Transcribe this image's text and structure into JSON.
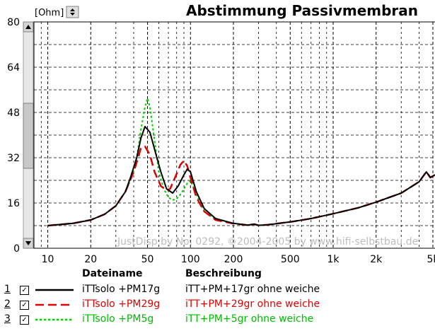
{
  "title": "Abstimmung Passivmembran",
  "unit_label": "[Ohm]",
  "watermark": "JustDisp by No. 0292, ©2004-2005 by www.hifi-selbstbau.de",
  "legend": {
    "header_file": "Dateiname",
    "header_desc": "Beschreibung",
    "entries": [
      {
        "index": "1",
        "checked": "☑",
        "file": "iTTsolo +PM17g",
        "desc": "iTT+PM+17gr ohne weiche",
        "color": "#000000",
        "style": "solid"
      },
      {
        "index": "2",
        "checked": "☑",
        "file": "iTTsolo +PM29g",
        "desc": "iTT+PM+29gr ohne weiche",
        "color": "#dd0000",
        "style": "dashed"
      },
      {
        "index": "3",
        "checked": "☑",
        "file": "iTTsolo +PM5g",
        "desc": "iTT+PM+5gr ohne weiche",
        "color": "#00cc00",
        "style": "dotted"
      }
    ]
  },
  "icons": {
    "spin": "spin-arrows-icon",
    "scroll_up": "arrow-up-icon",
    "scroll_down": "arrow-down-icon"
  },
  "chart_data": {
    "type": "line",
    "title": "Abstimmung Passivmembran",
    "ylabel": "[Ohm]",
    "xscale": "log",
    "xlim": [
      8,
      6000
    ],
    "ylim": [
      0,
      80
    ],
    "y_ticks": [
      "80",
      "64",
      "48",
      "32",
      "16",
      "0"
    ],
    "x_ticks": [
      "10",
      "20",
      "50",
      "100",
      "200",
      "500",
      "1k",
      "2k",
      "5k"
    ],
    "y_tick_values": [
      80,
      64,
      48,
      32,
      16,
      0
    ],
    "x_tick_values": [
      10,
      20,
      50,
      100,
      200,
      500,
      1000,
      2000,
      5000
    ],
    "grid": true,
    "series": [
      {
        "name": "iTTsolo +PM17g",
        "color": "#000000",
        "x": [
          10,
          15,
          20,
          25,
          30,
          35,
          38,
          42,
          45,
          48,
          52,
          56,
          62,
          68,
          75,
          82,
          90,
          95,
          100,
          110,
          125,
          150,
          200,
          250,
          280,
          300,
          350,
          400,
          500,
          700,
          1000,
          1500,
          2000,
          3000,
          4000,
          4500,
          4800,
          5200,
          6000
        ],
        "y": [
          8,
          8.8,
          10,
          12,
          15,
          20,
          25,
          32,
          39,
          43,
          41,
          35,
          27,
          21,
          19.5,
          22,
          26,
          28,
          27,
          20,
          14,
          10.5,
          8.8,
          8.2,
          8.5,
          8.1,
          8.3,
          8.7,
          9.3,
          10.5,
          12.2,
          14.3,
          16.3,
          19.5,
          23.5,
          27,
          25,
          26,
          27
        ]
      },
      {
        "name": "iTTsolo +PM29g",
        "color": "#dd0000",
        "x": [
          10,
          15,
          20,
          25,
          30,
          35,
          40,
          43,
          45,
          48,
          52,
          56,
          62,
          68,
          72,
          78,
          85,
          90,
          95,
          100,
          110,
          125,
          150,
          200,
          250,
          280,
          300,
          350,
          400,
          500,
          700,
          1000,
          1500,
          2000,
          3000,
          4000,
          4500,
          4800,
          5200,
          6000
        ],
        "y": [
          8,
          8.8,
          10,
          12,
          15,
          20,
          27,
          32,
          35.5,
          36,
          33,
          27,
          22,
          20.5,
          21,
          25,
          29.5,
          31,
          29,
          25,
          18,
          13,
          10,
          8.7,
          8.2,
          8.5,
          8.1,
          8.3,
          8.7,
          9.3,
          10.5,
          12.2,
          14.3,
          16.3,
          19.5,
          23.5,
          27,
          25,
          26,
          27
        ]
      },
      {
        "name": "iTTsolo +PM5g",
        "color": "#00cc00",
        "x": [
          10,
          15,
          20,
          25,
          30,
          35,
          38,
          42,
          45,
          48,
          50,
          52,
          56,
          60,
          65,
          70,
          75,
          80,
          85,
          90,
          95,
          100,
          110,
          125,
          150,
          200,
          250,
          280,
          300,
          350,
          400,
          500,
          700,
          1000,
          1500,
          2000,
          3000,
          4000,
          4500,
          4800,
          5200,
          6000
        ],
        "y": [
          8,
          8.8,
          10,
          12,
          15,
          20,
          24,
          32,
          42,
          50,
          53,
          50,
          38,
          27,
          21,
          18,
          17,
          17.5,
          19,
          21,
          23,
          24,
          19,
          13,
          10.2,
          8.8,
          8.2,
          8.5,
          8.1,
          8.3,
          8.7,
          9.3,
          10.5,
          12.2,
          14.3,
          16.3,
          19.5,
          23.5,
          27,
          25,
          26,
          27
        ]
      }
    ]
  }
}
